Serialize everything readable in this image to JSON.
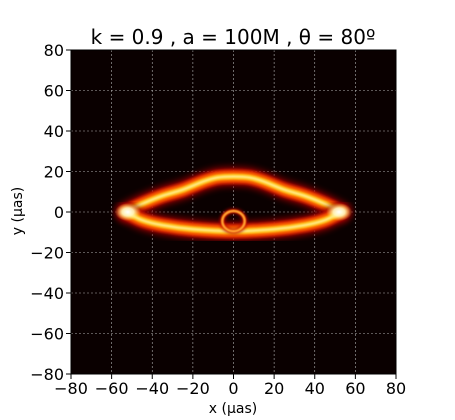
{
  "chart_data": {
    "type": "heatmap",
    "title": "k = 0.9 , a = 100M ,  θ = 80º",
    "xlabel": "x (μas)",
    "ylabel": "y (μas)",
    "xlim": [
      -80,
      80
    ],
    "ylim": [
      -80,
      80
    ],
    "xticks": [
      "−80",
      "−60",
      "−40",
      "−20",
      "0",
      "20",
      "40",
      "60",
      "80"
    ],
    "yticks": [
      "80",
      "60",
      "40",
      "20",
      "0",
      "−20",
      "−40",
      "−60",
      "−80"
    ],
    "grid": true,
    "background": "#0a0000",
    "colormap": "hot",
    "image_content": {
      "main_ring": {
        "description": "thick bright emission ring in the x-y plane",
        "upper_curve": [
          [
            -53,
            0
          ],
          [
            -45,
            4
          ],
          [
            -35,
            8
          ],
          [
            -25,
            11
          ],
          [
            -15,
            15
          ],
          [
            -8,
            17
          ],
          [
            0,
            17.5
          ],
          [
            8,
            17
          ],
          [
            15,
            15
          ],
          [
            25,
            11
          ],
          [
            35,
            8
          ],
          [
            45,
            4
          ],
          [
            53,
            0
          ]
        ],
        "lower_curve": [
          [
            -53,
            0
          ],
          [
            -45,
            -4
          ],
          [
            -35,
            -6.5
          ],
          [
            -20,
            -8.5
          ],
          [
            0,
            -9.5
          ],
          [
            20,
            -8.5
          ],
          [
            35,
            -6.5
          ],
          [
            45,
            -4
          ],
          [
            53,
            0
          ]
        ],
        "brightest_regions": [
          [
            -52,
            0
          ],
          [
            52,
            0
          ]
        ]
      },
      "inner_ring": {
        "description": "small secondary ring near the origin",
        "center": [
          0,
          -4.5
        ],
        "radius_x": 5.5,
        "radius_y": 5
      }
    }
  }
}
